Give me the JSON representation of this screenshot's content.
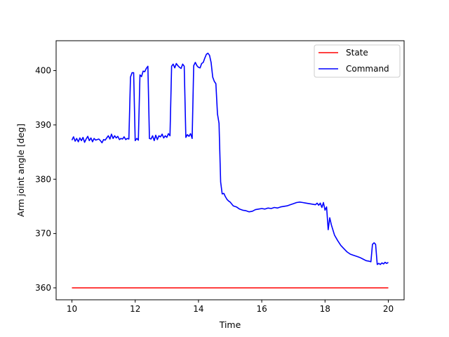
{
  "chart_data": {
    "type": "line",
    "xlabel": "Time",
    "ylabel": "Arm joint angle [deg]",
    "xlim": [
      9.5,
      20.5
    ],
    "ylim": [
      357.8,
      405.5
    ],
    "xticks": [
      10,
      12,
      14,
      16,
      18,
      20
    ],
    "yticks": [
      360,
      370,
      380,
      390,
      400
    ],
    "grid": false,
    "legend_position": "top-right",
    "series": [
      {
        "name": "State",
        "color": "#ff0000",
        "x": [
          10,
          11,
          12,
          13,
          14,
          15,
          16,
          17,
          18,
          19,
          20
        ],
        "y": [
          360.0,
          360.0,
          360.0,
          360.0,
          360.0,
          360.0,
          360.0,
          360.0,
          360.0,
          360.0,
          360.0
        ]
      },
      {
        "name": "Command",
        "color": "#0000ff",
        "x": [
          10.0,
          10.05,
          10.1,
          10.15,
          10.2,
          10.25,
          10.3,
          10.35,
          10.4,
          10.45,
          10.5,
          10.55,
          10.6,
          10.65,
          10.7,
          10.75,
          10.8,
          10.85,
          10.9,
          10.95,
          11.0,
          11.05,
          11.1,
          11.15,
          11.2,
          11.25,
          11.3,
          11.35,
          11.4,
          11.45,
          11.5,
          11.55,
          11.6,
          11.65,
          11.7,
          11.75,
          11.8,
          11.85,
          11.9,
          11.95,
          12.0,
          12.05,
          12.1,
          12.15,
          12.2,
          12.25,
          12.3,
          12.35,
          12.4,
          12.45,
          12.5,
          12.55,
          12.6,
          12.65,
          12.7,
          12.75,
          12.8,
          12.85,
          12.9,
          12.95,
          13.0,
          13.05,
          13.1,
          13.15,
          13.2,
          13.25,
          13.3,
          13.35,
          13.4,
          13.45,
          13.5,
          13.55,
          13.6,
          13.65,
          13.7,
          13.75,
          13.8,
          13.85,
          13.9,
          13.95,
          14.0,
          14.05,
          14.1,
          14.15,
          14.2,
          14.25,
          14.3,
          14.35,
          14.4,
          14.45,
          14.5,
          14.55,
          14.6,
          14.65,
          14.7,
          14.75,
          14.8,
          14.85,
          14.9,
          14.95,
          15.0,
          15.1,
          15.2,
          15.3,
          15.4,
          15.5,
          15.6,
          15.7,
          15.8,
          15.9,
          16.0,
          16.1,
          16.2,
          16.3,
          16.4,
          16.5,
          16.6,
          16.7,
          16.8,
          16.9,
          17.0,
          17.1,
          17.2,
          17.3,
          17.4,
          17.5,
          17.6,
          17.7,
          17.75,
          17.8,
          17.85,
          17.9,
          17.95,
          18.0,
          18.05,
          18.1,
          18.15,
          18.2,
          18.3,
          18.4,
          18.5,
          18.6,
          18.7,
          18.8,
          18.9,
          19.0,
          19.1,
          19.2,
          19.3,
          19.4,
          19.45,
          19.5,
          19.55,
          19.6,
          19.65,
          19.7,
          19.75,
          19.8,
          19.85,
          19.9,
          19.95,
          20.0
        ],
        "y": [
          387.2,
          387.8,
          387.0,
          387.5,
          386.9,
          387.6,
          387.1,
          387.7,
          386.8,
          387.4,
          387.9,
          387.1,
          387.6,
          386.9,
          387.5,
          387.2,
          387.3,
          387.4,
          387.1,
          386.7,
          387.3,
          387.2,
          387.6,
          388.0,
          387.4,
          388.3,
          387.5,
          388.0,
          387.6,
          387.9,
          387.3,
          387.5,
          387.4,
          387.8,
          387.3,
          387.5,
          387.4,
          398.8,
          399.6,
          399.6,
          387.1,
          387.5,
          387.2,
          399.2,
          398.9,
          399.9,
          399.8,
          400.4,
          400.8,
          387.5,
          387.4,
          388.0,
          387.1,
          388.1,
          387.3,
          388.0,
          387.8,
          388.3,
          387.6,
          388.0,
          387.7,
          388.4,
          388.0,
          400.8,
          401.2,
          400.5,
          401.3,
          400.9,
          400.6,
          400.4,
          401.2,
          400.8,
          387.7,
          388.2,
          387.9,
          388.4,
          387.5,
          400.9,
          401.5,
          400.9,
          400.6,
          400.5,
          401.3,
          401.5,
          402.3,
          403.0,
          403.2,
          402.8,
          401.5,
          398.8,
          398.0,
          397.6,
          392.0,
          390.3,
          379.5,
          377.3,
          377.4,
          376.8,
          376.3,
          376.0,
          375.8,
          375.1,
          374.9,
          374.5,
          374.3,
          374.2,
          374.0,
          374.1,
          374.4,
          374.5,
          374.6,
          374.5,
          374.7,
          374.6,
          374.8,
          374.7,
          374.9,
          375.0,
          375.1,
          375.3,
          375.5,
          375.7,
          375.8,
          375.7,
          375.6,
          375.5,
          375.4,
          375.3,
          375.6,
          375.2,
          375.6,
          374.8,
          375.7,
          374.3,
          374.9,
          370.7,
          372.9,
          371.6,
          369.7,
          368.7,
          367.8,
          367.2,
          366.6,
          366.2,
          366.0,
          365.8,
          365.6,
          365.3,
          365.0,
          364.9,
          364.8,
          368.0,
          368.3,
          368.0,
          364.3,
          364.5,
          364.3,
          364.6,
          364.4,
          364.7,
          364.5,
          364.7
        ]
      }
    ]
  }
}
